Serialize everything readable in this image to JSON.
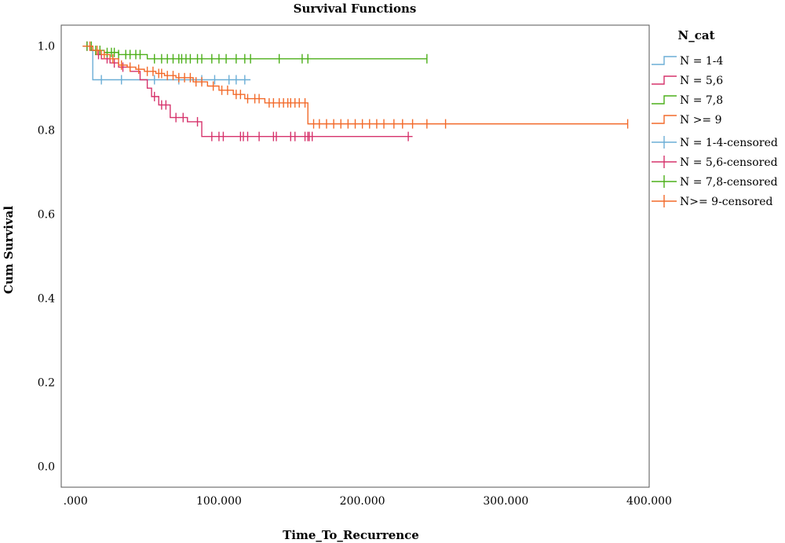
{
  "chart_data": {
    "type": "line",
    "title": "Survival Functions",
    "xlabel": "Time_To_Recurrence",
    "ylabel": "Cum Survival",
    "xlim": [
      -10,
      400
    ],
    "ylim": [
      -0.05,
      1.05
    ],
    "x_ticks": [
      0,
      100,
      200,
      300,
      400
    ],
    "x_tick_labels": [
      ".000",
      "100.000",
      "200.000",
      "300.000",
      "400.000"
    ],
    "y_ticks": [
      0,
      0.2,
      0.4,
      0.6,
      0.8,
      1.0
    ],
    "y_tick_labels": [
      "0.0",
      "0.2",
      "0.4",
      "0.6",
      "0.8",
      "1.0"
    ],
    "grid": false,
    "legend_title": "N_cat",
    "legend_position": "right",
    "series": [
      {
        "name": "N = 1-4",
        "censored_name": "N = 1-4-censored",
        "color": "#6baed6",
        "steps": [
          [
            5,
            1.0
          ],
          [
            12,
            0.92
          ],
          [
            122,
            0.92
          ]
        ],
        "censored": [
          18,
          32,
          55,
          72,
          88,
          97,
          107,
          112,
          118
        ]
      },
      {
        "name": "N = 5,6",
        "censored_name": "N = 5,6-censored",
        "color": "#d6336c",
        "steps": [
          [
            5,
            1.0
          ],
          [
            10,
            0.99
          ],
          [
            14,
            0.98
          ],
          [
            18,
            0.97
          ],
          [
            24,
            0.96
          ],
          [
            30,
            0.95
          ],
          [
            38,
            0.94
          ],
          [
            45,
            0.92
          ],
          [
            50,
            0.9
          ],
          [
            53,
            0.88
          ],
          [
            58,
            0.86
          ],
          [
            66,
            0.83
          ],
          [
            78,
            0.82
          ],
          [
            88,
            0.785
          ],
          [
            235,
            0.785
          ]
        ],
        "censored": [
          8,
          16,
          22,
          27,
          33,
          55,
          60,
          63,
          70,
          75,
          85,
          95,
          100,
          103,
          115,
          117,
          120,
          128,
          138,
          140,
          150,
          153,
          160,
          162,
          163,
          165,
          232
        ]
      },
      {
        "name": "N = 7,8",
        "censored_name": "N = 7,8-censored",
        "color": "#4caf1a",
        "steps": [
          [
            5,
            1.0
          ],
          [
            12,
            0.99
          ],
          [
            20,
            0.985
          ],
          [
            30,
            0.98
          ],
          [
            50,
            0.97
          ],
          [
            245,
            0.97
          ]
        ],
        "censored": [
          8,
          11,
          14,
          17,
          22,
          25,
          27,
          30,
          35,
          38,
          42,
          45,
          55,
          60,
          64,
          68,
          72,
          74,
          77,
          80,
          85,
          88,
          95,
          100,
          105,
          112,
          118,
          122,
          142,
          158,
          162,
          245
        ]
      },
      {
        "name": "N >= 9",
        "censored_name": "N>= 9-censored",
        "color": "#f26a2a",
        "steps": [
          [
            5,
            1.0
          ],
          [
            12,
            0.99
          ],
          [
            18,
            0.98
          ],
          [
            24,
            0.97
          ],
          [
            30,
            0.955
          ],
          [
            36,
            0.95
          ],
          [
            42,
            0.945
          ],
          [
            48,
            0.94
          ],
          [
            56,
            0.935
          ],
          [
            62,
            0.93
          ],
          [
            70,
            0.925
          ],
          [
            82,
            0.915
          ],
          [
            92,
            0.905
          ],
          [
            100,
            0.895
          ],
          [
            110,
            0.885
          ],
          [
            118,
            0.875
          ],
          [
            132,
            0.865
          ],
          [
            162,
            0.815
          ],
          [
            385,
            0.815
          ]
        ],
        "censored": [
          10,
          15,
          20,
          26,
          32,
          38,
          44,
          50,
          54,
          58,
          60,
          64,
          68,
          72,
          76,
          80,
          84,
          88,
          96,
          102,
          106,
          112,
          115,
          120,
          125,
          128,
          135,
          138,
          142,
          145,
          148,
          150,
          153,
          156,
          160,
          166,
          170,
          175,
          180,
          185,
          190,
          195,
          200,
          205,
          210,
          215,
          222,
          228,
          235,
          245,
          258,
          385
        ]
      }
    ]
  }
}
